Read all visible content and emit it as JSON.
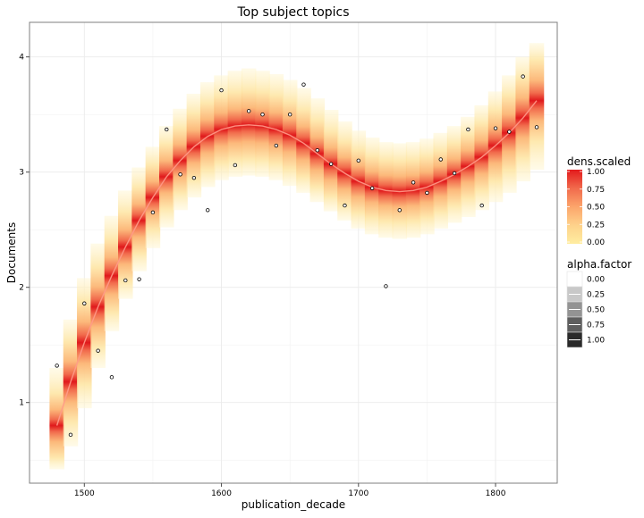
{
  "chart_data": {
    "type": "scatter",
    "title": "Top subject topics",
    "xlabel": "publication_decade",
    "ylabel": "Documents",
    "xlim": [
      1460,
      1845
    ],
    "ylim": [
      0.3,
      4.3
    ],
    "x_ticks": [
      1500,
      1600,
      1700,
      1800
    ],
    "y_ticks": [
      1,
      2,
      3,
      4
    ],
    "grid": true,
    "points": [
      {
        "x": 1480,
        "y": 1.32
      },
      {
        "x": 1490,
        "y": 0.72
      },
      {
        "x": 1500,
        "y": 1.86
      },
      {
        "x": 1510,
        "y": 1.45
      },
      {
        "x": 1520,
        "y": 1.22
      },
      {
        "x": 1530,
        "y": 2.06
      },
      {
        "x": 1540,
        "y": 2.07
      },
      {
        "x": 1550,
        "y": 2.65
      },
      {
        "x": 1560,
        "y": 3.37
      },
      {
        "x": 1570,
        "y": 2.98
      },
      {
        "x": 1580,
        "y": 2.95
      },
      {
        "x": 1590,
        "y": 2.67
      },
      {
        "x": 1600,
        "y": 3.71
      },
      {
        "x": 1610,
        "y": 3.06
      },
      {
        "x": 1620,
        "y": 3.53
      },
      {
        "x": 1630,
        "y": 3.5
      },
      {
        "x": 1640,
        "y": 3.23
      },
      {
        "x": 1650,
        "y": 3.5
      },
      {
        "x": 1660,
        "y": 3.76
      },
      {
        "x": 1670,
        "y": 3.19
      },
      {
        "x": 1680,
        "y": 3.07
      },
      {
        "x": 1690,
        "y": 2.71
      },
      {
        "x": 1700,
        "y": 3.1
      },
      {
        "x": 1710,
        "y": 2.86
      },
      {
        "x": 1720,
        "y": 2.01
      },
      {
        "x": 1730,
        "y": 2.67
      },
      {
        "x": 1740,
        "y": 2.91
      },
      {
        "x": 1750,
        "y": 2.82
      },
      {
        "x": 1760,
        "y": 3.11
      },
      {
        "x": 1770,
        "y": 2.99
      },
      {
        "x": 1780,
        "y": 3.37
      },
      {
        "x": 1790,
        "y": 2.71
      },
      {
        "x": 1800,
        "y": 3.38
      },
      {
        "x": 1810,
        "y": 3.35
      },
      {
        "x": 1820,
        "y": 3.83
      },
      {
        "x": 1830,
        "y": 3.39
      }
    ],
    "smooth_line": [
      {
        "x": 1480,
        "y": 0.8
      },
      {
        "x": 1490,
        "y": 1.18
      },
      {
        "x": 1500,
        "y": 1.52
      },
      {
        "x": 1510,
        "y": 1.83
      },
      {
        "x": 1520,
        "y": 2.1
      },
      {
        "x": 1530,
        "y": 2.35
      },
      {
        "x": 1540,
        "y": 2.58
      },
      {
        "x": 1550,
        "y": 2.78
      },
      {
        "x": 1560,
        "y": 2.96
      },
      {
        "x": 1570,
        "y": 3.1
      },
      {
        "x": 1580,
        "y": 3.22
      },
      {
        "x": 1590,
        "y": 3.31
      },
      {
        "x": 1600,
        "y": 3.37
      },
      {
        "x": 1610,
        "y": 3.4
      },
      {
        "x": 1620,
        "y": 3.41
      },
      {
        "x": 1630,
        "y": 3.4
      },
      {
        "x": 1640,
        "y": 3.37
      },
      {
        "x": 1650,
        "y": 3.32
      },
      {
        "x": 1660,
        "y": 3.25
      },
      {
        "x": 1670,
        "y": 3.16
      },
      {
        "x": 1680,
        "y": 3.07
      },
      {
        "x": 1690,
        "y": 2.99
      },
      {
        "x": 1700,
        "y": 2.92
      },
      {
        "x": 1710,
        "y": 2.87
      },
      {
        "x": 1720,
        "y": 2.84
      },
      {
        "x": 1730,
        "y": 2.83
      },
      {
        "x": 1740,
        "y": 2.84
      },
      {
        "x": 1750,
        "y": 2.87
      },
      {
        "x": 1760,
        "y": 2.92
      },
      {
        "x": 1770,
        "y": 2.98
      },
      {
        "x": 1780,
        "y": 3.05
      },
      {
        "x": 1790,
        "y": 3.13
      },
      {
        "x": 1800,
        "y": 3.23
      },
      {
        "x": 1810,
        "y": 3.34
      },
      {
        "x": 1820,
        "y": 3.47
      },
      {
        "x": 1830,
        "y": 3.62
      }
    ],
    "band": {
      "description_free": true,
      "lower_outer": [
        0.42,
        0.62,
        0.95,
        1.3,
        1.62,
        1.9,
        2.14,
        2.34,
        2.52,
        2.67,
        2.78,
        2.87,
        2.93,
        2.96,
        2.97,
        2.96,
        2.93,
        2.88,
        2.82,
        2.74,
        2.66,
        2.58,
        2.51,
        2.46,
        2.43,
        2.42,
        2.43,
        2.46,
        2.51,
        2.56,
        2.61,
        2.67,
        2.74,
        2.82,
        2.92,
        3.02
      ],
      "upper_outer": [
        1.3,
        1.72,
        2.08,
        2.38,
        2.62,
        2.84,
        3.04,
        3.22,
        3.4,
        3.55,
        3.68,
        3.78,
        3.84,
        3.88,
        3.9,
        3.88,
        3.85,
        3.8,
        3.73,
        3.64,
        3.54,
        3.44,
        3.36,
        3.3,
        3.26,
        3.25,
        3.26,
        3.29,
        3.34,
        3.4,
        3.48,
        3.58,
        3.7,
        3.84,
        4.0,
        4.12
      ]
    },
    "legends": [
      {
        "title": "dens.scaled",
        "type": "colorbar",
        "labels": [
          "1.00",
          "0.75",
          "0.50",
          "0.25",
          "0.00"
        ],
        "colors": [
          "#e31a1c",
          "#f16a4c",
          "#fca56b",
          "#fed28b",
          "#ffeda0"
        ]
      },
      {
        "title": "alpha.factor",
        "type": "keys",
        "labels": [
          "0.00",
          "0.25",
          "0.50",
          "0.75",
          "1.00"
        ],
        "fills": [
          "#ffffff",
          "#c8c8c8",
          "#939393",
          "#5e5e5e",
          "#2a2a2a"
        ]
      }
    ],
    "legend_placement": "right"
  }
}
